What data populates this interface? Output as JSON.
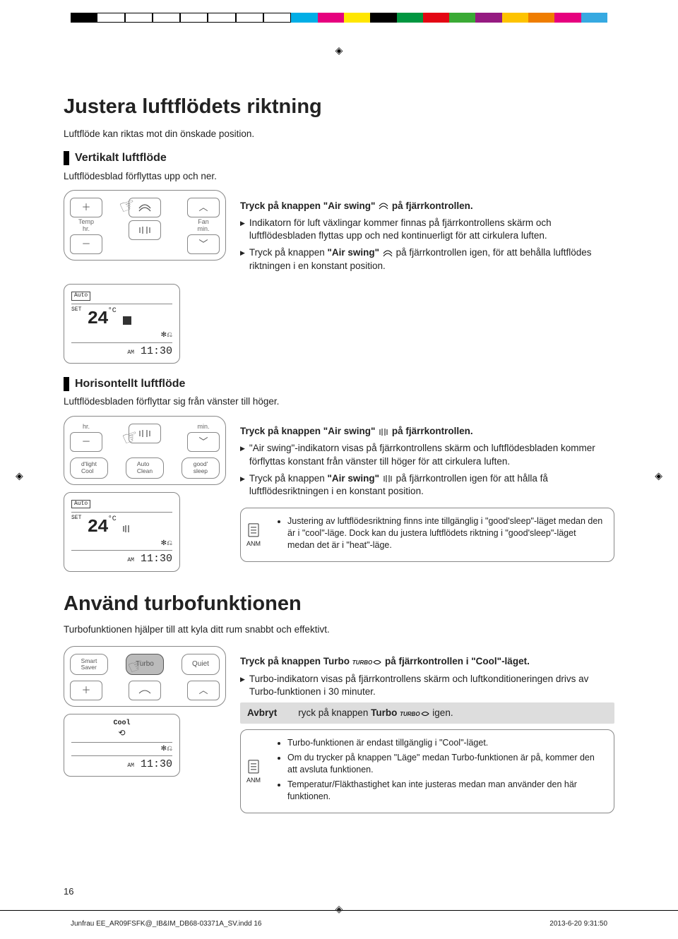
{
  "colorbar": [
    "#000000",
    "#ffffff",
    "#ffffff",
    "#ffffff",
    "#ffffff",
    "#ffffff",
    "#ffffff",
    "#ffffff",
    "#00aee6",
    "#e6007e",
    "#ffe600",
    "#000000",
    "#009640",
    "#e30613",
    "#3aaa35",
    "#951b81",
    "#fdc300",
    "#ef7d00",
    "#e6007e",
    "#36a9e1"
  ],
  "h1": "Justera luftflödets riktning",
  "intro": "Luftflöde kan riktas mot din önskade position.",
  "sec1": {
    "title": "Vertikalt luftflöde",
    "sub": "Luftflödesblad förflyttas upp och ner.",
    "instr_title_a": "Tryck på knappen \"Air swing\" ",
    "instr_title_b": " på fjärrkontrollen.",
    "b1": "Indikatorn för luft växlingar kommer finnas på fjärrkontrollens skärm och luftflödesbladen flyttas upp och ned kontinuerligt för att cirkulera luften.",
    "b2a": "Tryck på knappen ",
    "b2b": "\"Air swing\"",
    "b2c": " på fjärrkontrollen igen, för att behålla luftflödes riktningen i en konstant position."
  },
  "remote1": {
    "temp": "Temp",
    "hr": "hr.",
    "fan": "Fan",
    "min": "min."
  },
  "lcd": {
    "mode": "Auto",
    "set": "SET",
    "temp": "24",
    "unit": "°C",
    "am": "AM",
    "time": "11:30"
  },
  "sec2": {
    "title": "Horisontellt luftflöde",
    "sub": "Luftflödesbladen förflyttar sig från vänster till höger.",
    "instr_title_a": "Tryck på knappen \"Air swing\" ",
    "instr_title_b": " på fjärrkontrollen.",
    "b1": "\"Air swing\"-indikatorn visas på fjärrkontrollens skärm och luftflödesbladen kommer förflyttas konstant från vänster till höger för att cirkulera luften.",
    "b2a": "Tryck på knappen ",
    "b2b": "\"Air swing\"",
    "b2c": " på fjärrkontrollen igen för att hålla få luftflödesriktningen i en konstant position."
  },
  "remote2": {
    "hr": "hr.",
    "min": "min.",
    "dlight": "d'light\nCool",
    "auto": "Auto\nClean",
    "good": "good'\nsleep"
  },
  "note1": {
    "anm": "ANM",
    "text": "Justering av luftflödesriktning finns inte tillgänglig i \"good'sleep\"-läget medan den är i \"cool\"-läge. Dock kan du justera luftflödets riktning i \"good'sleep\"-läget medan det är i \"heat\"-läge."
  },
  "h2": "Använd turbofunktionen",
  "intro2": "Turbofunktionen hjälper till att kyla ditt rum snabbt och effektivt.",
  "remote3": {
    "smart": "Smart\nSaver",
    "turbo": "Turbo",
    "quiet": "Quiet"
  },
  "lcd3": {
    "mode": "Cool",
    "am": "AM",
    "time": "11:30"
  },
  "sec3": {
    "instr_title_a": "Tryck på knappen Turbo ",
    "instr_title_b": " på fjärrkontrollen i \"Cool\"-läget.",
    "b1": "Turbo-indikatorn visas på fjärrkontrollens skärm och luftkonditioneringen drivs av Turbo-funktionen i 30 minuter.",
    "cancel_label": "Avbryt",
    "cancel_text_a": "ryck på knappen ",
    "cancel_text_b": "Turbo",
    "cancel_text_c": " igen."
  },
  "note2": {
    "anm": "ANM",
    "li1": "Turbo-funktionen är endast tillgänglig i \"Cool\"-läget.",
    "li2": "Om du trycker på knappen \"Läge\" medan Turbo-funktionen är på, kommer den att avsluta funktionen.",
    "li3": "Temperatur/Fläkthastighet kan inte justeras medan man använder den här funktionen."
  },
  "page_num": "16",
  "footer_file": "Junfrau EE_AR09FSFK@_IB&IM_DB68-03371A_SV.indd   16",
  "footer_date": "2013-6-20   9:31:50",
  "turbo_word": "TURBO"
}
